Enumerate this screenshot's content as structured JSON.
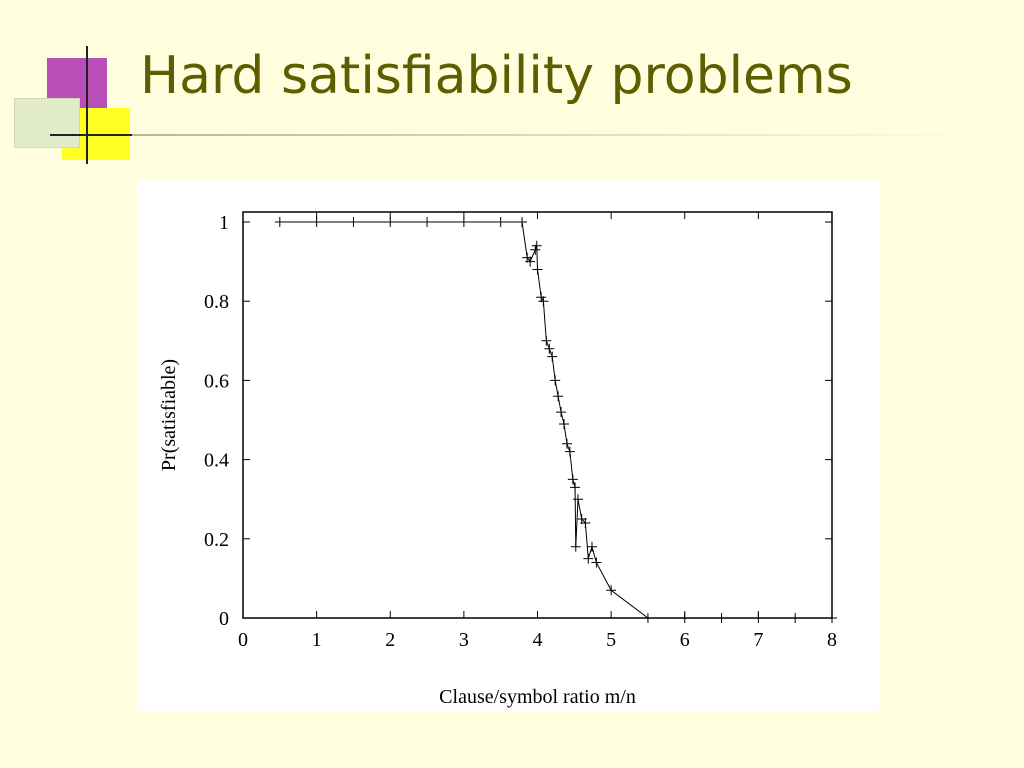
{
  "chart_data": {
    "type": "line",
    "title": "Hard satisfiability problems",
    "x_label": "Clause/symbol ratio m/n",
    "y_label": "Pr(satisfiable)",
    "x": [
      0.5,
      1,
      1.5,
      2,
      2.5,
      3,
      3.5,
      3.79,
      3.86,
      3.9,
      3.97,
      3.99,
      4.0,
      4.05,
      4.08,
      4.12,
      4.16,
      4.2,
      4.24,
      4.28,
      4.32,
      4.36,
      4.4,
      4.44,
      4.48,
      4.51,
      4.52,
      4.55,
      4.6,
      4.65,
      4.69,
      4.74,
      4.8,
      5.0,
      5.5,
      6,
      6.5,
      7,
      7.5,
      8
    ],
    "values": [
      1,
      1,
      1,
      1,
      1,
      1,
      1,
      1,
      0.91,
      0.9,
      0.93,
      0.94,
      0.88,
      0.81,
      0.8,
      0.7,
      0.68,
      0.66,
      0.6,
      0.56,
      0.52,
      0.49,
      0.44,
      0.42,
      0.35,
      0.33,
      0.18,
      0.3,
      0.25,
      0.24,
      0.15,
      0.18,
      0.14,
      0.07,
      0,
      0,
      0,
      0,
      0,
      0
    ],
    "color": "#000000",
    "xlim": [
      0,
      8
    ],
    "ylim": [
      0,
      1
    ],
    "xticks": [
      0,
      1,
      2,
      3,
      4,
      5,
      6,
      7,
      8
    ],
    "yticks": [
      0,
      0.2,
      0.4,
      0.6,
      0.8,
      1
    ]
  }
}
